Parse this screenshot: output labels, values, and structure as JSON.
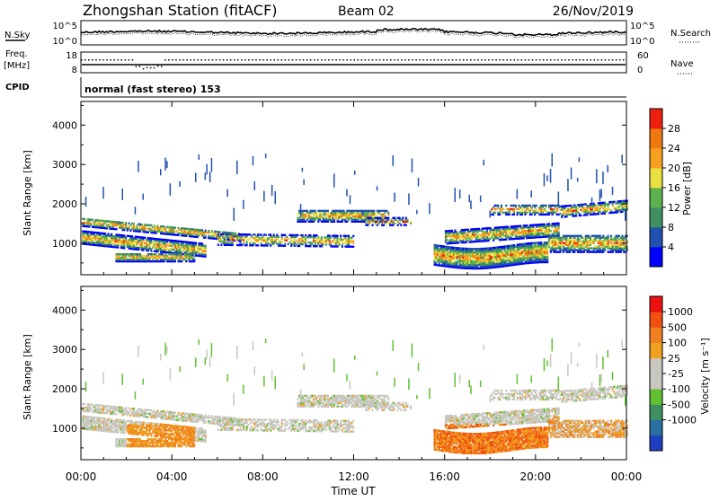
{
  "header": {
    "station": "Zhongshan Station (fitACF)",
    "beam": "Beam 02",
    "date": "26/Nov/2019"
  },
  "top_panels": {
    "nsky_label": "N.Sky",
    "nsky_ticks": [
      "10^5",
      "10^0"
    ],
    "nsearch_label": "N.Search",
    "nsearch_ticks": [
      "10^5",
      "10^0"
    ],
    "freq_label_1": "Freq.",
    "freq_label_2": "[MHz]",
    "freq_ticks": [
      "18",
      "8"
    ],
    "nave_label": "Nave",
    "nave_ticks": [
      "60",
      "0"
    ],
    "cpid_label": "CPID",
    "mode_text": "normal (fast stereo) 153"
  },
  "colors": {
    "power_scale": [
      "#0000ff",
      "#2050b0",
      "#3f8f63",
      "#5cb04d",
      "#e8e040",
      "#f7a020",
      "#f07a10",
      "#ee2010"
    ],
    "velocity_scale": [
      "#ee1010",
      "#f05010",
      "#f08020",
      "#f0a020",
      "#c8c8c0",
      "#c8c8c0",
      "#60c030",
      "#3e9060",
      "#2a70a0",
      "#1f3fbf"
    ]
  },
  "chart_data": [
    {
      "type": "heatmap",
      "title": "",
      "ylabel": "Slant Range [km]",
      "ylim": [
        200,
        4600
      ],
      "yticks": [
        "1000",
        "2000",
        "3000",
        "4000"
      ],
      "colorbar_label": "Power [dB]",
      "colorbar_ticks": [
        "4",
        "8",
        "12",
        "16",
        "20",
        "24",
        "28"
      ]
    },
    {
      "type": "heatmap",
      "title": "",
      "ylabel": "Slant Range [km]",
      "ylim": [
        200,
        4600
      ],
      "yticks": [
        "1000",
        "2000",
        "3000",
        "4000"
      ],
      "colorbar_label": "Velocity [m s⁻¹]",
      "colorbar_ticks": [
        "1000",
        "500",
        "100",
        "25",
        "-25",
        "-100",
        "-500",
        "-1000"
      ]
    }
  ],
  "xaxis": {
    "label": "Time UT",
    "ticks": [
      "00:00",
      "04:00",
      "08:00",
      "12:00",
      "16:00",
      "20:00",
      "00:00"
    ]
  }
}
